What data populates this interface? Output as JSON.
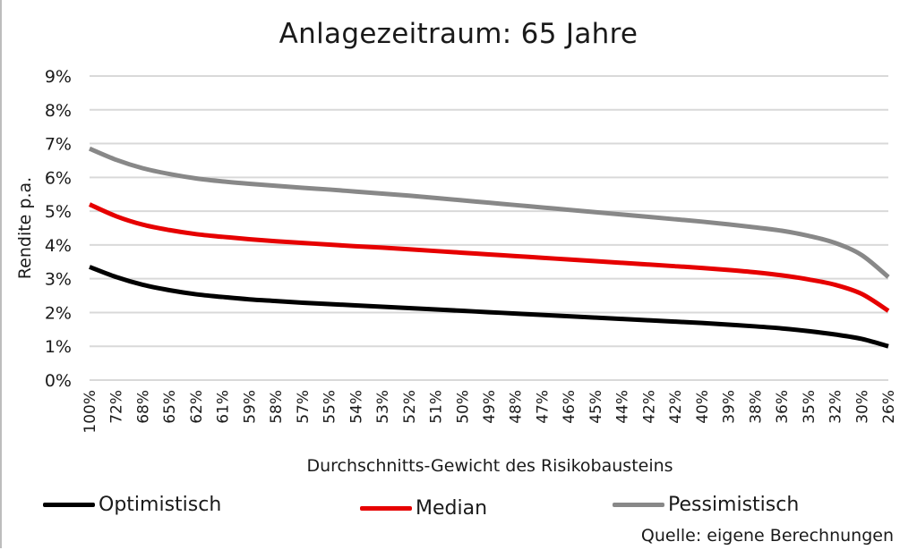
{
  "chart_data": {
    "type": "line",
    "title": "Anlagezeitraum: 65 Jahre",
    "xlabel": "Durchschnitts-Gewicht des Risikobausteins",
    "ylabel": "Rendite p.a.",
    "ylim": [
      0,
      9
    ],
    "yticks": [
      "0%",
      "1%",
      "2%",
      "3%",
      "4%",
      "5%",
      "6%",
      "7%",
      "8%",
      "9%"
    ],
    "grid": true,
    "legend_position": "bottom",
    "categories": [
      "100%",
      "72%",
      "68%",
      "65%",
      "62%",
      "61%",
      "59%",
      "58%",
      "57%",
      "55%",
      "54%",
      "53%",
      "52%",
      "51%",
      "50%",
      "49%",
      "48%",
      "47%",
      "46%",
      "45%",
      "44%",
      "42%",
      "42%",
      "40%",
      "39%",
      "38%",
      "36%",
      "35%",
      "32%",
      "30%",
      "26%"
    ],
    "series": [
      {
        "name": "Optimistisch",
        "color": "#000000",
        "values": [
          3.35,
          3.05,
          2.82,
          2.66,
          2.54,
          2.46,
          2.39,
          2.34,
          2.29,
          2.25,
          2.21,
          2.17,
          2.13,
          2.09,
          2.05,
          2.01,
          1.97,
          1.93,
          1.89,
          1.85,
          1.81,
          1.77,
          1.73,
          1.69,
          1.64,
          1.59,
          1.53,
          1.45,
          1.35,
          1.22,
          1.0
        ]
      },
      {
        "name": "Median",
        "color": "#e60000",
        "values": [
          5.2,
          4.85,
          4.6,
          4.44,
          4.32,
          4.24,
          4.17,
          4.11,
          4.06,
          4.01,
          3.96,
          3.92,
          3.87,
          3.82,
          3.77,
          3.72,
          3.67,
          3.62,
          3.57,
          3.52,
          3.47,
          3.42,
          3.37,
          3.32,
          3.26,
          3.19,
          3.1,
          2.98,
          2.82,
          2.55,
          2.05
        ]
      },
      {
        "name": "Pessimistisch",
        "color": "#888888",
        "values": [
          6.85,
          6.52,
          6.27,
          6.1,
          5.97,
          5.88,
          5.81,
          5.75,
          5.69,
          5.64,
          5.58,
          5.52,
          5.46,
          5.39,
          5.32,
          5.25,
          5.18,
          5.11,
          5.04,
          4.97,
          4.9,
          4.83,
          4.76,
          4.69,
          4.61,
          4.52,
          4.42,
          4.27,
          4.06,
          3.7,
          3.05
        ]
      }
    ]
  },
  "source": "Quelle: eigene Berechnungen"
}
